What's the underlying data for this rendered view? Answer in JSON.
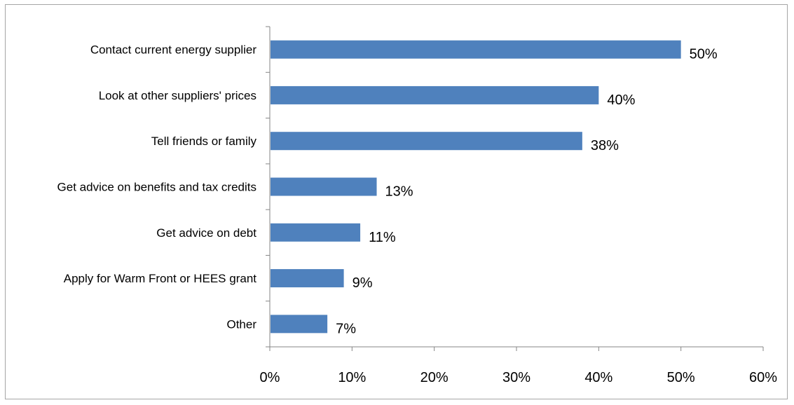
{
  "chart_data": {
    "type": "bar",
    "orientation": "horizontal",
    "categories": [
      "Contact current energy supplier",
      "Look at other suppliers' prices",
      "Tell friends or family",
      "Get advice on benefits and tax credits",
      "Get advice on debt",
      "Apply for Warm Front or HEES grant",
      "Other"
    ],
    "values": [
      50,
      40,
      38,
      13,
      11,
      9,
      7
    ],
    "data_labels": [
      "50%",
      "40%",
      "38%",
      "13%",
      "11%",
      "9%",
      "7%"
    ],
    "x_ticks": [
      "0%",
      "10%",
      "20%",
      "30%",
      "40%",
      "50%",
      "60%"
    ],
    "xlim": [
      0,
      60
    ],
    "bar_color": "#4f81bd",
    "grid": false,
    "legend": "none"
  }
}
